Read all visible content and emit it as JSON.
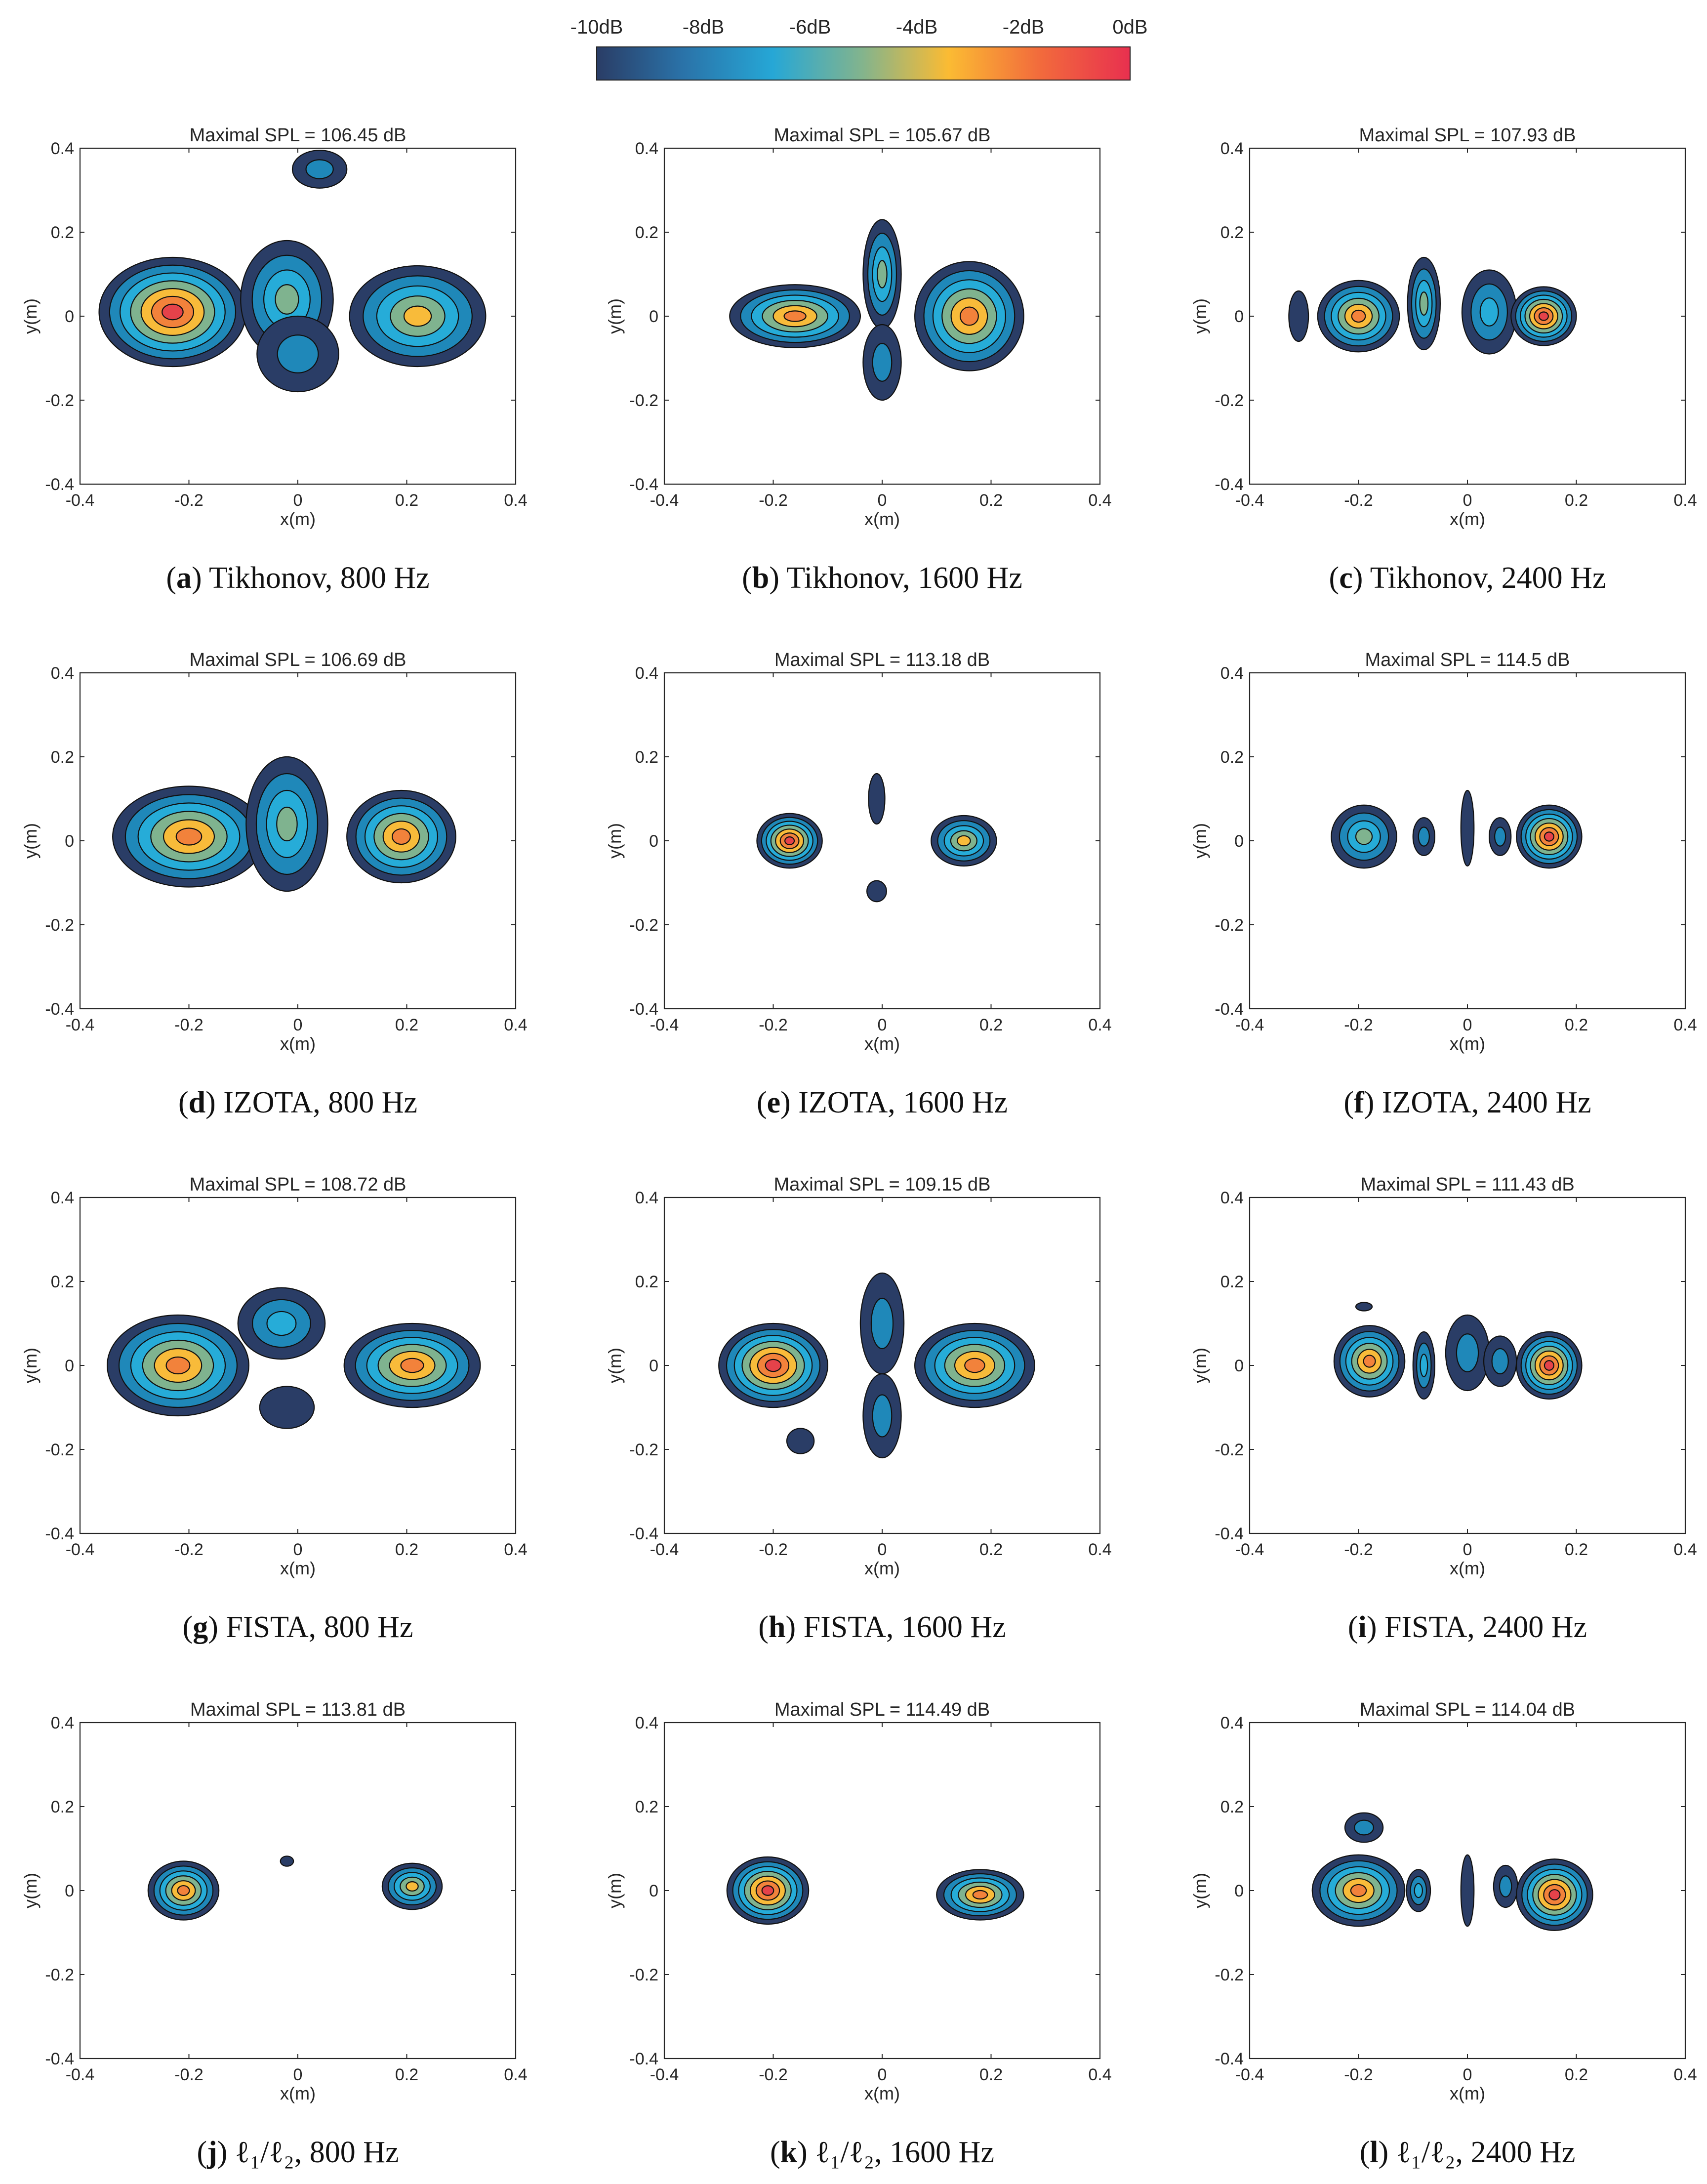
{
  "colorbar": {
    "labels": [
      "-10dB",
      "-8dB",
      "-6dB",
      "-4dB",
      "-2dB",
      "0dB"
    ],
    "range_db": [
      -10,
      0
    ],
    "colors": [
      "#2a3d66",
      "#2a72a8",
      "#26a7d6",
      "#84b48c",
      "#fbbb33",
      "#f26b3c",
      "#e8304f"
    ]
  },
  "level_colors": [
    "#2a3d66",
    "#1f88b9",
    "#26acd8",
    "#7fb38f",
    "#f8bb3a",
    "#f2823b",
    "#e5424a"
  ],
  "chart_data": [
    {
      "id": "a",
      "type": "contour",
      "title": "Maximal SPL = 106.45 dB",
      "xlabel": "x(m)",
      "ylabel": "y(m)",
      "xlim": [
        -0.4,
        0.4
      ],
      "ylim": [
        -0.4,
        0.4
      ],
      "xticks": [
        "-0.4",
        "-0.2",
        "0",
        "0.2",
        "0.4"
      ],
      "yticks": [
        "0.4",
        "0.2",
        "0",
        "-0.2",
        "-0.4"
      ],
      "caption_letter": "a",
      "caption_text": "Tikhonov, 800 Hz",
      "sources": [
        {
          "x": -0.23,
          "y": 0.01,
          "rx": 0.135,
          "ry": 0.13,
          "levels": 7
        },
        {
          "x": 0.22,
          "y": 0.0,
          "rx": 0.125,
          "ry": 0.12,
          "levels": 5
        },
        {
          "x": -0.02,
          "y": 0.04,
          "rx": 0.085,
          "ry": 0.14,
          "levels": 4
        },
        {
          "x": 0.0,
          "y": -0.09,
          "rx": 0.075,
          "ry": 0.09,
          "levels": 2
        },
        {
          "x": 0.04,
          "y": 0.35,
          "rx": 0.05,
          "ry": 0.045,
          "levels": 2
        }
      ]
    },
    {
      "id": "b",
      "type": "contour",
      "title": "Maximal SPL = 105.67 dB",
      "xlabel": "x(m)",
      "ylabel": "y(m)",
      "xlim": [
        -0.4,
        0.4
      ],
      "ylim": [
        -0.4,
        0.4
      ],
      "xticks": [
        "-0.4",
        "-0.2",
        "0",
        "0.2",
        "0.4"
      ],
      "yticks": [
        "0.4",
        "0.2",
        "0",
        "-0.2",
        "-0.4"
      ],
      "caption_letter": "b",
      "caption_text": "Tikhonov, 1600 Hz",
      "sources": [
        {
          "x": -0.16,
          "y": 0.0,
          "rx": 0.12,
          "ry": 0.075,
          "levels": 6
        },
        {
          "x": 0.16,
          "y": 0.0,
          "rx": 0.1,
          "ry": 0.13,
          "levels": 6
        },
        {
          "x": 0.0,
          "y": 0.1,
          "rx": 0.035,
          "ry": 0.13,
          "levels": 4
        },
        {
          "x": 0.0,
          "y": -0.11,
          "rx": 0.035,
          "ry": 0.09,
          "levels": 2
        }
      ]
    },
    {
      "id": "c",
      "type": "contour",
      "title": "Maximal SPL = 107.93 dB",
      "xlabel": "x(m)",
      "ylabel": "y(m)",
      "xlim": [
        -0.4,
        0.4
      ],
      "ylim": [
        -0.4,
        0.4
      ],
      "xticks": [
        "-0.4",
        "-0.2",
        "0",
        "0.2",
        "0.4"
      ],
      "yticks": [
        "0.4",
        "0.2",
        "0",
        "-0.2",
        "-0.4"
      ],
      "caption_letter": "c",
      "caption_text": "Tikhonov, 2400 Hz",
      "sources": [
        {
          "x": -0.2,
          "y": 0.0,
          "rx": 0.075,
          "ry": 0.085,
          "levels": 6
        },
        {
          "x": -0.08,
          "y": 0.03,
          "rx": 0.03,
          "ry": 0.11,
          "levels": 4
        },
        {
          "x": 0.04,
          "y": 0.01,
          "rx": 0.05,
          "ry": 0.1,
          "levels": 3
        },
        {
          "x": 0.14,
          "y": 0.0,
          "rx": 0.06,
          "ry": 0.07,
          "levels": 7
        },
        {
          "x": -0.31,
          "y": 0.0,
          "rx": 0.018,
          "ry": 0.06,
          "levels": 1
        }
      ]
    },
    {
      "id": "d",
      "type": "contour",
      "title": "Maximal SPL = 106.69 dB",
      "xlabel": "x(m)",
      "ylabel": "y(m)",
      "xlim": [
        -0.4,
        0.4
      ],
      "ylim": [
        -0.4,
        0.4
      ],
      "xticks": [
        "-0.4",
        "-0.2",
        "0",
        "0.2",
        "0.4"
      ],
      "yticks": [
        "0.4",
        "0.2",
        "0",
        "-0.2",
        "-0.4"
      ],
      "caption_letter": "d",
      "caption_text": "IZOTA, 800 Hz",
      "sources": [
        {
          "x": -0.2,
          "y": 0.01,
          "rx": 0.14,
          "ry": 0.12,
          "levels": 6
        },
        {
          "x": 0.19,
          "y": 0.01,
          "rx": 0.1,
          "ry": 0.11,
          "levels": 6
        },
        {
          "x": -0.02,
          "y": 0.04,
          "rx": 0.075,
          "ry": 0.16,
          "levels": 4
        }
      ]
    },
    {
      "id": "e",
      "type": "contour",
      "title": "Maximal SPL = 113.18 dB",
      "xlabel": "x(m)",
      "ylabel": "y(m)",
      "xlim": [
        -0.4,
        0.4
      ],
      "ylim": [
        -0.4,
        0.4
      ],
      "xticks": [
        "-0.4",
        "-0.2",
        "0",
        "0.2",
        "0.4"
      ],
      "yticks": [
        "0.4",
        "0.2",
        "0",
        "-0.2",
        "-0.4"
      ],
      "caption_letter": "e",
      "caption_text": "IZOTA, 1600 Hz",
      "sources": [
        {
          "x": -0.17,
          "y": 0.0,
          "rx": 0.06,
          "ry": 0.065,
          "levels": 7
        },
        {
          "x": 0.15,
          "y": 0.0,
          "rx": 0.06,
          "ry": 0.06,
          "levels": 5
        },
        {
          "x": -0.01,
          "y": 0.1,
          "rx": 0.015,
          "ry": 0.06,
          "levels": 1
        },
        {
          "x": -0.01,
          "y": -0.12,
          "rx": 0.018,
          "ry": 0.025,
          "levels": 1
        }
      ]
    },
    {
      "id": "f",
      "type": "contour",
      "title": "Maximal SPL = 114.5 dB",
      "xlabel": "x(m)",
      "ylabel": "y(m)",
      "xlim": [
        -0.4,
        0.4
      ],
      "ylim": [
        -0.4,
        0.4
      ],
      "xticks": [
        "-0.4",
        "-0.2",
        "0",
        "0.2",
        "0.4"
      ],
      "yticks": [
        "0.4",
        "0.2",
        "0",
        "-0.2",
        "-0.4"
      ],
      "caption_letter": "f",
      "caption_text": "IZOTA, 2400 Hz",
      "sources": [
        {
          "x": -0.19,
          "y": 0.01,
          "rx": 0.06,
          "ry": 0.075,
          "levels": 4
        },
        {
          "x": -0.08,
          "y": 0.01,
          "rx": 0.02,
          "ry": 0.045,
          "levels": 2
        },
        {
          "x": 0.0,
          "y": 0.03,
          "rx": 0.012,
          "ry": 0.09,
          "levels": 1
        },
        {
          "x": 0.06,
          "y": 0.01,
          "rx": 0.02,
          "ry": 0.045,
          "levels": 2
        },
        {
          "x": 0.15,
          "y": 0.01,
          "rx": 0.06,
          "ry": 0.075,
          "levels": 7
        }
      ]
    },
    {
      "id": "g",
      "type": "contour",
      "title": "Maximal SPL = 108.72 dB",
      "xlabel": "x(m)",
      "ylabel": "y(m)",
      "xlim": [
        -0.4,
        0.4
      ],
      "ylim": [
        -0.4,
        0.4
      ],
      "xticks": [
        "-0.4",
        "-0.2",
        "0",
        "0.2",
        "0.4"
      ],
      "yticks": [
        "0.4",
        "0.2",
        "0",
        "-0.2",
        "-0.4"
      ],
      "caption_letter": "g",
      "caption_text": "FISTA, 800 Hz",
      "sources": [
        {
          "x": -0.22,
          "y": 0.0,
          "rx": 0.13,
          "ry": 0.12,
          "levels": 6
        },
        {
          "x": 0.21,
          "y": 0.0,
          "rx": 0.125,
          "ry": 0.1,
          "levels": 6
        },
        {
          "x": -0.03,
          "y": 0.1,
          "rx": 0.08,
          "ry": 0.085,
          "levels": 3
        },
        {
          "x": -0.02,
          "y": -0.1,
          "rx": 0.05,
          "ry": 0.05,
          "levels": 1
        }
      ]
    },
    {
      "id": "h",
      "type": "contour",
      "title": "Maximal SPL = 109.15 dB",
      "xlabel": "x(m)",
      "ylabel": "y(m)",
      "xlim": [
        -0.4,
        0.4
      ],
      "ylim": [
        -0.4,
        0.4
      ],
      "xticks": [
        "-0.4",
        "-0.2",
        "0",
        "0.2",
        "0.4"
      ],
      "yticks": [
        "0.4",
        "0.2",
        "0",
        "-0.2",
        "-0.4"
      ],
      "caption_letter": "h",
      "caption_text": "FISTA, 1600 Hz",
      "sources": [
        {
          "x": -0.2,
          "y": 0.0,
          "rx": 0.1,
          "ry": 0.1,
          "levels": 7
        },
        {
          "x": 0.17,
          "y": 0.0,
          "rx": 0.11,
          "ry": 0.1,
          "levels": 6
        },
        {
          "x": 0.0,
          "y": 0.1,
          "rx": 0.04,
          "ry": 0.12,
          "levels": 2
        },
        {
          "x": 0.0,
          "y": -0.12,
          "rx": 0.035,
          "ry": 0.1,
          "levels": 2
        },
        {
          "x": -0.15,
          "y": -0.18,
          "rx": 0.025,
          "ry": 0.03,
          "levels": 1
        }
      ]
    },
    {
      "id": "i",
      "type": "contour",
      "title": "Maximal SPL = 111.43 dB",
      "xlabel": "x(m)",
      "ylabel": "y(m)",
      "xlim": [
        -0.4,
        0.4
      ],
      "ylim": [
        -0.4,
        0.4
      ],
      "xticks": [
        "-0.4",
        "-0.2",
        "0",
        "0.2",
        "0.4"
      ],
      "yticks": [
        "0.4",
        "0.2",
        "0",
        "-0.2",
        "-0.4"
      ],
      "caption_letter": "i",
      "caption_text": "FISTA, 2400 Hz",
      "sources": [
        {
          "x": -0.18,
          "y": 0.01,
          "rx": 0.065,
          "ry": 0.085,
          "levels": 6
        },
        {
          "x": -0.08,
          "y": 0.0,
          "rx": 0.02,
          "ry": 0.08,
          "levels": 3
        },
        {
          "x": 0.0,
          "y": 0.03,
          "rx": 0.04,
          "ry": 0.09,
          "levels": 2
        },
        {
          "x": 0.06,
          "y": 0.01,
          "rx": 0.03,
          "ry": 0.06,
          "levels": 2
        },
        {
          "x": 0.15,
          "y": 0.0,
          "rx": 0.06,
          "ry": 0.08,
          "levels": 7
        },
        {
          "x": -0.19,
          "y": 0.14,
          "rx": 0.015,
          "ry": 0.01,
          "levels": 1
        }
      ]
    },
    {
      "id": "j",
      "type": "contour",
      "title": "Maximal SPL = 113.81 dB",
      "xlabel": "x(m)",
      "ylabel": "y(m)",
      "xlim": [
        -0.4,
        0.4
      ],
      "ylim": [
        -0.4,
        0.4
      ],
      "xticks": [
        "-0.4",
        "-0.2",
        "0",
        "0.2",
        "0.4"
      ],
      "yticks": [
        "0.4",
        "0.2",
        "0",
        "-0.2",
        "-0.4"
      ],
      "caption_letter": "j",
      "caption_text": "ℓ₁/ℓ₂, 800 Hz",
      "sources": [
        {
          "x": -0.21,
          "y": 0.0,
          "rx": 0.065,
          "ry": 0.07,
          "levels": 6
        },
        {
          "x": 0.21,
          "y": 0.01,
          "rx": 0.055,
          "ry": 0.055,
          "levels": 5
        },
        {
          "x": -0.02,
          "y": 0.07,
          "rx": 0.012,
          "ry": 0.012,
          "levels": 1
        }
      ]
    },
    {
      "id": "k",
      "type": "contour",
      "title": "Maximal SPL = 114.49 dB",
      "xlabel": "x(m)",
      "ylabel": "y(m)",
      "xlim": [
        -0.4,
        0.4
      ],
      "ylim": [
        -0.4,
        0.4
      ],
      "xticks": [
        "-0.4",
        "-0.2",
        "0",
        "0.2",
        "0.4"
      ],
      "yticks": [
        "0.4",
        "0.2",
        "0",
        "-0.2",
        "-0.4"
      ],
      "caption_letter": "k",
      "caption_text": "ℓ₁/ℓ₂, 1600 Hz",
      "sources": [
        {
          "x": -0.21,
          "y": 0.0,
          "rx": 0.075,
          "ry": 0.08,
          "levels": 7
        },
        {
          "x": 0.18,
          "y": -0.01,
          "rx": 0.08,
          "ry": 0.06,
          "levels": 6
        }
      ]
    },
    {
      "id": "l",
      "type": "contour",
      "title": "Maximal SPL = 114.04 dB",
      "xlabel": "x(m)",
      "ylabel": "y(m)",
      "xlim": [
        -0.4,
        0.4
      ],
      "ylim": [
        -0.4,
        0.4
      ],
      "xticks": [
        "-0.4",
        "-0.2",
        "0",
        "0.2",
        "0.4"
      ],
      "yticks": [
        "0.4",
        "0.2",
        "0",
        "-0.2",
        "-0.4"
      ],
      "caption_letter": "l",
      "caption_text": "ℓ₁/ℓ₂, 2400 Hz",
      "sources": [
        {
          "x": -0.2,
          "y": 0.0,
          "rx": 0.085,
          "ry": 0.085,
          "levels": 6
        },
        {
          "x": -0.09,
          "y": 0.0,
          "rx": 0.022,
          "ry": 0.05,
          "levels": 3
        },
        {
          "x": 0.0,
          "y": 0.0,
          "rx": 0.012,
          "ry": 0.085,
          "levels": 1
        },
        {
          "x": 0.07,
          "y": 0.01,
          "rx": 0.022,
          "ry": 0.05,
          "levels": 2
        },
        {
          "x": 0.16,
          "y": -0.01,
          "rx": 0.07,
          "ry": 0.085,
          "levels": 7
        },
        {
          "x": -0.19,
          "y": 0.15,
          "rx": 0.035,
          "ry": 0.035,
          "levels": 2
        }
      ]
    }
  ]
}
